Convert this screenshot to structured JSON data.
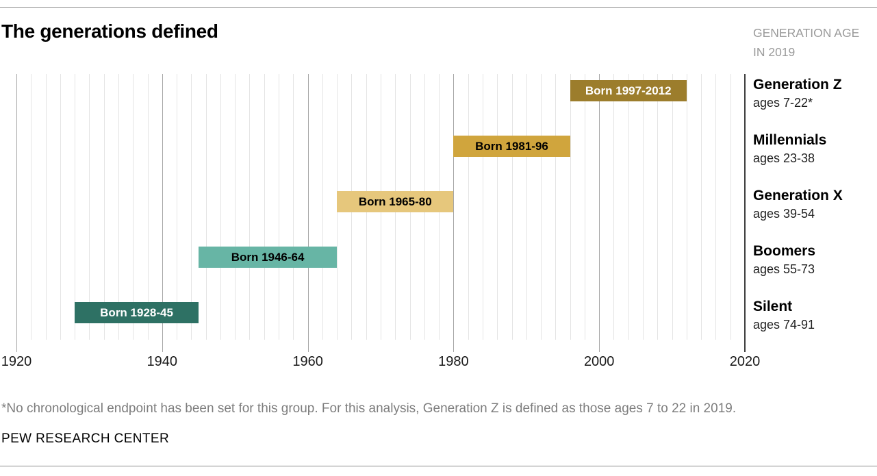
{
  "header": {
    "title": "The generations defined",
    "age_note": [
      "GENERATION AGE",
      "IN 2019"
    ]
  },
  "chart_data": {
    "type": "bar",
    "subtype": "horizontal-timeline",
    "title": "The generations defined",
    "x_axis": {
      "min": 1920,
      "max": 2020,
      "tick_step": 20,
      "ticks": [
        1920,
        1940,
        1960,
        1980,
        2000,
        2020
      ],
      "grid_step_years": 2
    },
    "legend_position": "right",
    "grid": "on",
    "rows": [
      {
        "name": "Generation Z",
        "ages": "ages 7-22*",
        "bar_label": "Born 1997-2012",
        "born_start": 1997,
        "born_end": 2012,
        "plot_start": 1996,
        "plot_end": 2012,
        "color": "#9c7d2c",
        "label_color": "#ffffff"
      },
      {
        "name": "Millennials",
        "ages": "ages 23-38",
        "bar_label": "Born 1981-96",
        "born_start": 1981,
        "born_end": 1996,
        "plot_start": 1980,
        "plot_end": 1996,
        "color": "#d0a53d",
        "label_color": "#000000"
      },
      {
        "name": "Generation X",
        "ages": "ages 39-54",
        "bar_label": "Born 1965-80",
        "born_start": 1965,
        "born_end": 1980,
        "plot_start": 1964,
        "plot_end": 1980,
        "color": "#e6c77c",
        "label_color": "#000000"
      },
      {
        "name": "Boomers",
        "ages": "ages 55-73",
        "bar_label": "Born 1946-64",
        "born_start": 1946,
        "born_end": 1964,
        "plot_start": 1945,
        "plot_end": 1964,
        "color": "#67b5a5",
        "label_color": "#000000"
      },
      {
        "name": "Silent",
        "ages": "ages 74-91",
        "bar_label": "Born 1928-45",
        "born_start": 1928,
        "born_end": 1945,
        "plot_start": 1928,
        "plot_end": 1945,
        "color": "#2e7164",
        "label_color": "#ffffff"
      }
    ],
    "colors": {
      "grid_light": "#e4e4e4",
      "grid_major": "#a6a6a6",
      "axis_end_line": "#3d3d3d"
    }
  },
  "footer": {
    "footnote": "*No chronological endpoint has been set for this group. For this analysis, Generation Z is defined as those ages 7 to 22 in 2019.",
    "source": "PEW RESEARCH CENTER"
  }
}
